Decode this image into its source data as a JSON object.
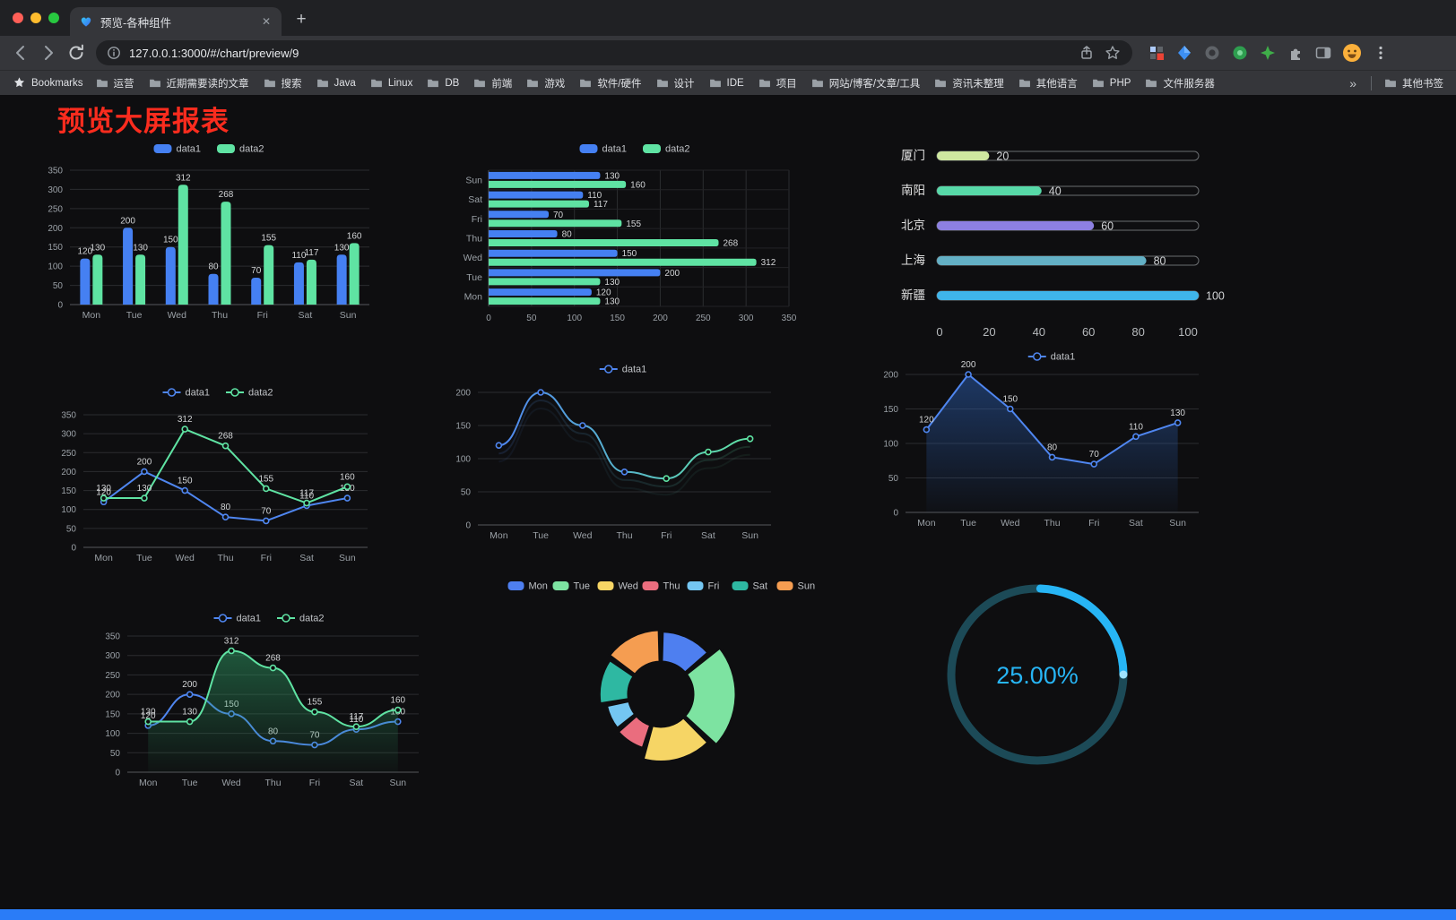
{
  "browser": {
    "traffic_lights": [
      "#ff5f57",
      "#febc2e",
      "#28c840"
    ],
    "tab": {
      "title": "预览-各种组件",
      "close_glyph": "✕",
      "new_tab_glyph": "+"
    },
    "toolbar": {
      "url": "127.0.0.1:3000/#/chart/preview/9"
    },
    "bookmarks_bar": {
      "star_label": "Bookmarks",
      "folders": [
        "运营",
        "近期需要读的文章",
        "搜索",
        "Java",
        "Linux",
        "DB",
        "前端",
        "游戏",
        "软件/硬件",
        "设计",
        "IDE",
        "项目",
        "网站/博客/文章/工具",
        "资讯未整理",
        "其他语言",
        "PHP",
        "文件服务器"
      ],
      "overflow_glyph": "»",
      "other_bookmarks": "其他书签"
    }
  },
  "page": {
    "title": "预览大屏报表",
    "title_color": "#fa2c1e",
    "background": "#0e0e10",
    "bottom_bar_color": "#2a7cf7"
  },
  "chart_data": [
    {
      "id": "bar-vertical",
      "type": "bar",
      "categories": [
        "Mon",
        "Tue",
        "Wed",
        "Thu",
        "Fri",
        "Sat",
        "Sun"
      ],
      "series": [
        {
          "name": "data1",
          "color": "#4580f2",
          "values": [
            120,
            200,
            150,
            80,
            70,
            110,
            130
          ]
        },
        {
          "name": "data2",
          "color": "#5fe3a3",
          "values": [
            130,
            130,
            312,
            268,
            155,
            117,
            160
          ]
        }
      ],
      "ylim": [
        0,
        350
      ],
      "ytick": 50,
      "legend_position": "top",
      "grid": true
    },
    {
      "id": "bar-horizontal",
      "type": "bar",
      "orientation": "horizontal",
      "categories": [
        "Mon",
        "Tue",
        "Wed",
        "Thu",
        "Fri",
        "Sat",
        "Sun"
      ],
      "display_order_top_to_bottom": [
        "Sun",
        "Sat",
        "Fri",
        "Thu",
        "Wed",
        "Tue",
        "Mon"
      ],
      "series": [
        {
          "name": "data1",
          "color": "#4580f2",
          "values": [
            120,
            200,
            150,
            80,
            70,
            110,
            130
          ]
        },
        {
          "name": "data2",
          "color": "#5fe3a3",
          "values": [
            130,
            130,
            312,
            268,
            155,
            117,
            160
          ]
        }
      ],
      "xlim": [
        0,
        350
      ],
      "xtick": 50,
      "legend_position": "top",
      "grid": true
    },
    {
      "id": "progress-bars",
      "type": "bar",
      "style": "capsule-progress",
      "items": [
        {
          "label": "厦门",
          "value": 20,
          "color": "#cfe8a0"
        },
        {
          "label": "南阳",
          "value": 40,
          "color": "#57d9a8"
        },
        {
          "label": "北京",
          "value": 60,
          "color": "#8d80e2"
        },
        {
          "label": "上海",
          "value": 80,
          "color": "#63b0c5"
        },
        {
          "label": "新疆",
          "value": 100,
          "color": "#3fb5ea"
        }
      ],
      "xlim": [
        0,
        100
      ],
      "xticks": [
        0,
        20,
        40,
        60,
        80,
        100
      ]
    },
    {
      "id": "line-dual",
      "type": "line",
      "categories": [
        "Mon",
        "Tue",
        "Wed",
        "Thu",
        "Fri",
        "Sat",
        "Sun"
      ],
      "series": [
        {
          "name": "data1",
          "color": "#4f86f0",
          "values": [
            120,
            200,
            150,
            80,
            70,
            110,
            130
          ]
        },
        {
          "name": "data2",
          "color": "#5fe3a3",
          "values": [
            130,
            130,
            312,
            268,
            155,
            117,
            160
          ]
        }
      ],
      "ylim": [
        0,
        350
      ],
      "ytick": 50,
      "labels": true,
      "legend_position": "top"
    },
    {
      "id": "line-gradient",
      "type": "line",
      "categories": [
        "Mon",
        "Tue",
        "Wed",
        "Thu",
        "Fri",
        "Sat",
        "Sun"
      ],
      "series": [
        {
          "name": "data1",
          "gradient": [
            "#4f86f0",
            "#5fe3a3"
          ],
          "values": [
            120,
            200,
            150,
            80,
            70,
            110,
            130
          ]
        }
      ],
      "ylim": [
        0,
        200
      ],
      "ytick": 50,
      "labels": false,
      "legend_position": "top"
    },
    {
      "id": "line-area",
      "type": "area",
      "categories": [
        "Mon",
        "Tue",
        "Wed",
        "Thu",
        "Fri",
        "Sat",
        "Sun"
      ],
      "series": [
        {
          "name": "data1",
          "color": "#4f86f0",
          "area": true,
          "area_color": "#2d62b8",
          "values": [
            120,
            200,
            150,
            80,
            70,
            110,
            130
          ]
        }
      ],
      "ylim": [
        0,
        200
      ],
      "ytick": 50,
      "labels": true,
      "legend_position": "top"
    },
    {
      "id": "line-dual-area",
      "type": "area",
      "categories": [
        "Mon",
        "Tue",
        "Wed",
        "Thu",
        "Fri",
        "Sat",
        "Sun"
      ],
      "series": [
        {
          "name": "data1",
          "color": "#4f86f0",
          "values": [
            120,
            200,
            150,
            80,
            70,
            110,
            130
          ]
        },
        {
          "name": "data2",
          "color": "#5fe3a3",
          "area": true,
          "area_color": "#2f9e66",
          "values": [
            130,
            130,
            312,
            268,
            155,
            117,
            160
          ]
        }
      ],
      "ylim": [
        0,
        350
      ],
      "ytick": 50,
      "labels": true,
      "legend_position": "top"
    },
    {
      "id": "rose-doughnut",
      "type": "pie",
      "style": "rose-doughnut",
      "categories": [
        "Mon",
        "Tue",
        "Wed",
        "Thu",
        "Fri",
        "Sat",
        "Sun"
      ],
      "values": [
        120,
        200,
        150,
        80,
        70,
        110,
        130
      ],
      "colors": [
        "#4e7ff0",
        "#7de3a1",
        "#f6d565",
        "#ea6d7e",
        "#74c6f2",
        "#2eb8a2",
        "#f59d51"
      ],
      "legend_position": "top"
    },
    {
      "id": "gauge-percent",
      "type": "gauge",
      "value": 25,
      "display": "25.00%",
      "color": "#27b5f5",
      "track_color": "#1c4a57"
    }
  ]
}
